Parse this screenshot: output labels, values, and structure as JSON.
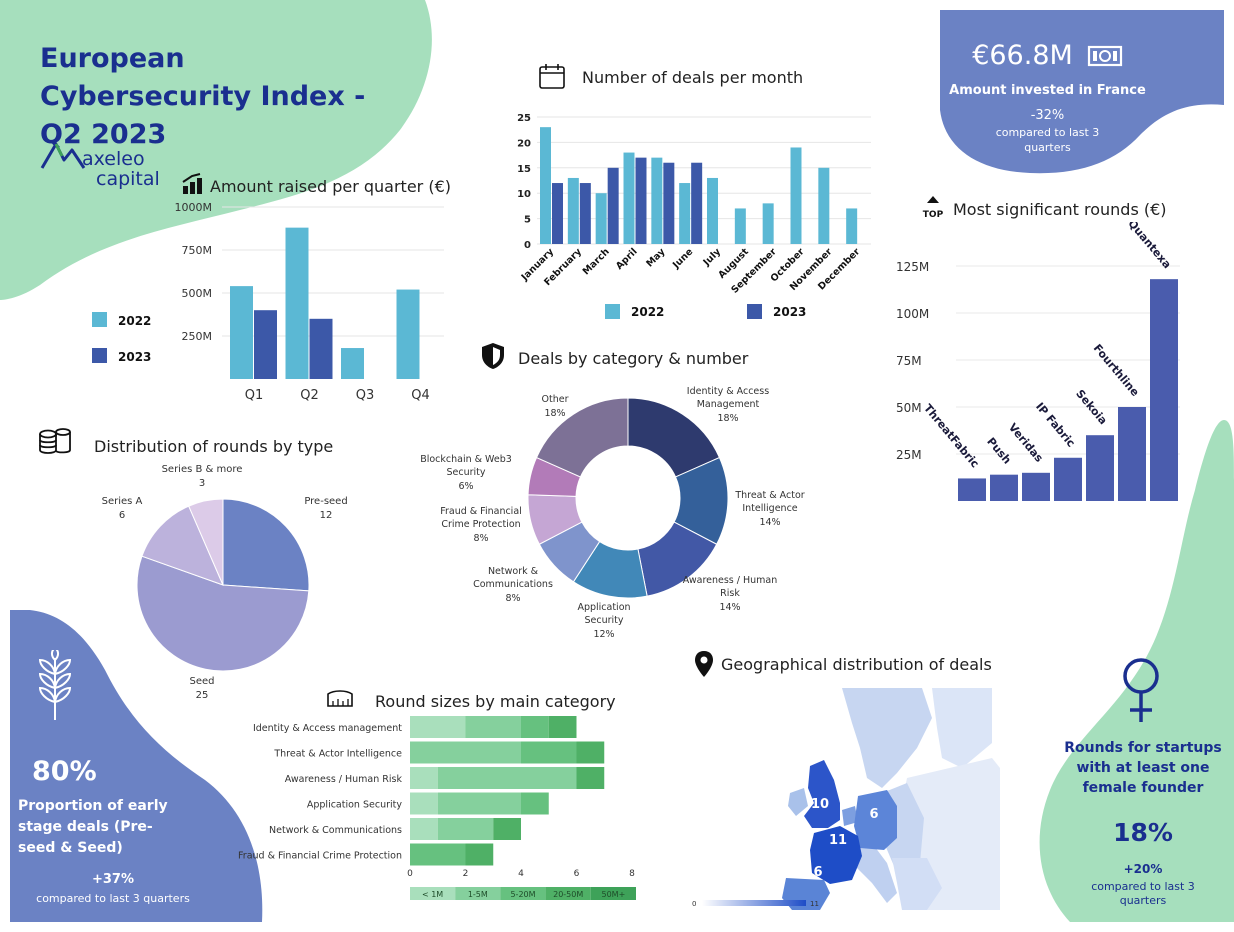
{
  "header": {
    "title": "European Cybersecurity Index - Q2 2023",
    "logo_line1": "axeleo",
    "logo_line2": "capital"
  },
  "colors": {
    "green_blob": "#a6dfbd",
    "blue_blob": "#6b82c4",
    "light_blue": "#5bb8d4",
    "dark_blue": "#3c58a8",
    "purple": "#4a5cad",
    "title_blue": "#1a2f8f"
  },
  "kpi_france": {
    "value": "€66.8M",
    "label": "Amount invested in France",
    "change": "-32%",
    "note": "compared to last 3 quarters",
    "icon": "banknote-icon"
  },
  "kpi_early": {
    "value": "80%",
    "label": "Proportion of early stage deals (Pre-seed & Seed)",
    "change": "+37%",
    "note": "compared to last 3 quarters",
    "icon": "wheat-icon"
  },
  "kpi_female": {
    "label": "Rounds for startups with at least one female founder",
    "value": "18%",
    "change": "+20%",
    "note": "compared to last 3 quarters",
    "icon": "female-symbol-icon"
  },
  "sections": {
    "quarter": "Amount raised per quarter (€)",
    "month": "Number of deals per month",
    "rounds": "Most significant rounds (€)",
    "category": "Deals by category & number",
    "type": "Distribution of rounds by type",
    "sizes": "Round sizes by main category",
    "geo": "Geographical distribution of deals"
  },
  "chart_data": [
    {
      "id": "quarter",
      "type": "bar",
      "title": "Amount raised per quarter (€)",
      "categories": [
        "Q1",
        "Q2",
        "Q3",
        "Q4"
      ],
      "series": [
        {
          "name": "2022",
          "values": [
            540,
            880,
            180,
            520
          ],
          "color": "#5bb8d4"
        },
        {
          "name": "2023",
          "values": [
            400,
            350,
            null,
            null
          ],
          "color": "#3c58a8"
        }
      ],
      "yticks": [
        "250M",
        "500M",
        "750M",
        "1000M"
      ],
      "ylim": [
        0,
        1000
      ],
      "unit": "M€",
      "legend_position": "left"
    },
    {
      "id": "month",
      "type": "bar",
      "title": "Number of deals per month",
      "categories": [
        "January",
        "February",
        "March",
        "April",
        "May",
        "June",
        "July",
        "August",
        "September",
        "October",
        "November",
        "December"
      ],
      "series": [
        {
          "name": "2022",
          "values": [
            23,
            13,
            10,
            18,
            17,
            12,
            13,
            7,
            8,
            19,
            15,
            7
          ],
          "color": "#5bb8d4"
        },
        {
          "name": "2023",
          "values": [
            12,
            12,
            15,
            17,
            16,
            16,
            null,
            null,
            null,
            null,
            null,
            null
          ],
          "color": "#3c58a8"
        }
      ],
      "yticks": [
        "0",
        "5",
        "10",
        "15",
        "20",
        "25"
      ],
      "ylim": [
        0,
        25
      ],
      "legend_position": "bottom"
    },
    {
      "id": "rounds",
      "type": "bar",
      "title": "Most significant rounds (€)",
      "categories": [
        "ThreatFabric",
        "Push",
        "Veridas",
        "IP Fabric",
        "Sekoia",
        "Fourthline",
        "Quantexa"
      ],
      "values": [
        12,
        14,
        15,
        23,
        35,
        50,
        118
      ],
      "yticks": [
        "25M",
        "50M",
        "75M",
        "100M",
        "125M"
      ],
      "ylim": [
        0,
        125
      ],
      "color": "#4a5cad"
    },
    {
      "id": "category",
      "type": "pie",
      "title": "Deals by category & number",
      "slices": [
        {
          "label": "Identity & Access Management",
          "pct": "18%",
          "value": 18,
          "color": "#2e3a6e"
        },
        {
          "label": "Threat & Actor Intelligence",
          "pct": "14%",
          "value": 14,
          "color": "#34609a"
        },
        {
          "label": "Awareness / Human Risk",
          "pct": "14%",
          "value": 14,
          "color": "#4258a6"
        },
        {
          "label": "Application Security",
          "pct": "12%",
          "value": 12,
          "color": "#4188b8"
        },
        {
          "label": "Network & Communications",
          "pct": "8%",
          "value": 8,
          "color": "#7f94cc"
        },
        {
          "label": "Fraud & Financial Crime Protection",
          "pct": "8%",
          "value": 8,
          "color": "#c5a6d4"
        },
        {
          "label": "Blockchain & Web3 Security",
          "pct": "6%",
          "value": 6,
          "color": "#b27bb8"
        },
        {
          "label": "Other",
          "pct": "18%",
          "value": 18,
          "color": "#7d7196"
        }
      ]
    },
    {
      "id": "type",
      "type": "pie",
      "title": "Distribution of rounds by type",
      "slices": [
        {
          "label": "Pre-seed",
          "value": 12,
          "color": "#6b82c4"
        },
        {
          "label": "Seed",
          "value": 25,
          "color": "#9b9bd0"
        },
        {
          "label": "Series A",
          "value": 6,
          "color": "#bcb2dc"
        },
        {
          "label": "Series B & more",
          "value": 3,
          "color": "#dccbe8"
        }
      ]
    },
    {
      "id": "sizes",
      "type": "bar",
      "orientation": "horizontal",
      "stacked": true,
      "title": "Round sizes by main category",
      "categories": [
        "Identity & Access management",
        "Threat & Actor Intelligence",
        "Awareness / Human Risk",
        "Application Security",
        "Network & Communications",
        "Fraud & Financial Crime Protection"
      ],
      "series": [
        {
          "name": "< 1M",
          "values": [
            2,
            0,
            1,
            1,
            1,
            0
          ],
          "color": "#a9dfbc"
        },
        {
          "name": "1-5M",
          "values": [
            2,
            4,
            5,
            3,
            2,
            0
          ],
          "color": "#85d09d"
        },
        {
          "name": "5-20M",
          "values": [
            1,
            2,
            0,
            1,
            0,
            2
          ],
          "color": "#66c17f"
        },
        {
          "name": "20-50M",
          "values": [
            1,
            1,
            1,
            0,
            1,
            1
          ],
          "color": "#4fb066"
        },
        {
          "name": "50M+",
          "values": [
            0,
            0,
            0,
            0,
            0,
            0
          ],
          "color": "#3ea259"
        }
      ],
      "xticks": [
        "0",
        "2",
        "4",
        "6",
        "8"
      ],
      "xlim": [
        0,
        8
      ]
    },
    {
      "id": "geo",
      "type": "heatmap",
      "title": "Geographical distribution of deals",
      "regions": [
        {
          "name": "United Kingdom",
          "value": 10
        },
        {
          "name": "France",
          "value": 11
        },
        {
          "name": "Germany",
          "value": 6
        },
        {
          "name": "Spain",
          "value": 6
        }
      ],
      "scale": [
        "0",
        "11"
      ]
    }
  ]
}
